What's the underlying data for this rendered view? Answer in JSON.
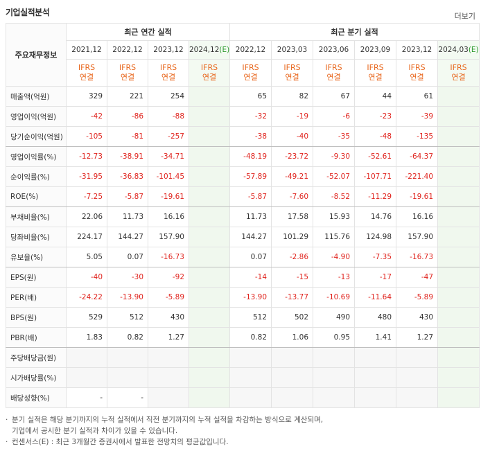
{
  "header": {
    "title": "기업실적분석",
    "more": "더보기"
  },
  "table": {
    "corner": "주요재무정보",
    "groups": [
      {
        "label": "최근 연간 실적",
        "columns": [
          {
            "period": "2021,12",
            "basis": "IFRS",
            "scope": "연결"
          },
          {
            "period": "2022,12",
            "basis": "IFRS",
            "scope": "연결"
          },
          {
            "period": "2023,12",
            "basis": "IFRS",
            "scope": "연결"
          },
          {
            "period": "2024,12",
            "mark": "(E)",
            "basis": "IFRS",
            "scope": "연결"
          }
        ]
      },
      {
        "label": "최근 분기 실적",
        "columns": [
          {
            "period": "2022,12",
            "basis": "IFRS",
            "scope": "연결"
          },
          {
            "period": "2023,03",
            "basis": "IFRS",
            "scope": "연결"
          },
          {
            "period": "2023,06",
            "basis": "IFRS",
            "scope": "연결"
          },
          {
            "period": "2023,09",
            "basis": "IFRS",
            "scope": "연결"
          },
          {
            "period": "2023,12",
            "basis": "IFRS",
            "scope": "연결"
          },
          {
            "period": "2024,03",
            "mark": "(E)",
            "basis": "IFRS",
            "scope": "연결"
          }
        ]
      }
    ],
    "rows": [
      {
        "label": "매출액(억원)",
        "values": [
          "329",
          "221",
          "254",
          null,
          "65",
          "82",
          "67",
          "44",
          "61",
          null
        ]
      },
      {
        "label": "영업이익(억원)",
        "values": [
          "-42",
          "-86",
          "-88",
          null,
          "-32",
          "-19",
          "-6",
          "-23",
          "-39",
          null
        ]
      },
      {
        "label": "당기순이익(억원)",
        "values": [
          "-105",
          "-81",
          "-257",
          null,
          "-38",
          "-40",
          "-35",
          "-48",
          "-135",
          null
        ]
      },
      {
        "label": "영업이익률(%)",
        "values": [
          "-12.73",
          "-38.91",
          "-34.71",
          null,
          "-48.19",
          "-23.72",
          "-9.30",
          "-52.61",
          "-64.37",
          null
        ]
      },
      {
        "label": "순이익률(%)",
        "values": [
          "-31.95",
          "-36.83",
          "-101.45",
          null,
          "-57.89",
          "-49.21",
          "-52.07",
          "-107.71",
          "-221.40",
          null
        ]
      },
      {
        "label": "ROE(%)",
        "values": [
          "-7.25",
          "-5.87",
          "-19.61",
          null,
          "-5.87",
          "-7.60",
          "-8.52",
          "-11.29",
          "-19.61",
          null
        ]
      },
      {
        "label": "부채비율(%)",
        "values": [
          "22.06",
          "11.73",
          "16.16",
          null,
          "11.73",
          "17.58",
          "15.93",
          "14.76",
          "16.16",
          null
        ]
      },
      {
        "label": "당좌비율(%)",
        "values": [
          "224.17",
          "144.27",
          "157.90",
          null,
          "144.27",
          "101.29",
          "115.76",
          "124.98",
          "157.90",
          null
        ]
      },
      {
        "label": "유보율(%)",
        "values": [
          "5.05",
          "0.07",
          "-16.73",
          null,
          "0.07",
          "-2.86",
          "-4.90",
          "-7.35",
          "-16.73",
          null
        ]
      },
      {
        "label": "EPS(원)",
        "values": [
          "-40",
          "-30",
          "-92",
          null,
          "-14",
          "-15",
          "-13",
          "-17",
          "-47",
          null
        ]
      },
      {
        "label": "PER(배)",
        "values": [
          "-24.22",
          "-13.90",
          "-5.89",
          null,
          "-13.90",
          "-13.77",
          "-10.69",
          "-11.64",
          "-5.89",
          null
        ]
      },
      {
        "label": "BPS(원)",
        "values": [
          "529",
          "512",
          "430",
          null,
          "512",
          "502",
          "490",
          "480",
          "430",
          null
        ]
      },
      {
        "label": "PBR(배)",
        "values": [
          "1.83",
          "0.82",
          "1.27",
          null,
          "0.82",
          "1.06",
          "0.95",
          "1.41",
          "1.27",
          null
        ]
      },
      {
        "label": "주당배당금(원)",
        "values": [
          null,
          null,
          null,
          null,
          null,
          null,
          null,
          null,
          null,
          null
        ]
      },
      {
        "label": "시가배당률(%)",
        "values": [
          null,
          null,
          null,
          null,
          null,
          null,
          null,
          null,
          null,
          null
        ]
      },
      {
        "label": "배당성향(%)",
        "values": [
          "-",
          "-",
          null,
          null,
          null,
          null,
          null,
          null,
          null,
          null
        ]
      }
    ]
  },
  "notes": [
    [
      "분기 실적은 해당 분기까지의 누적 실적에서 직전 분기까지의 누적 실적을 차감하는 방식으로 계산되며,",
      "기업에서 공시한 분기 실적과 차이가 있을 수 있습니다."
    ],
    [
      "컨센서스(E) : 최근 3개월간 증권사에서 발표한 전망치의 평균값입니다."
    ]
  ]
}
